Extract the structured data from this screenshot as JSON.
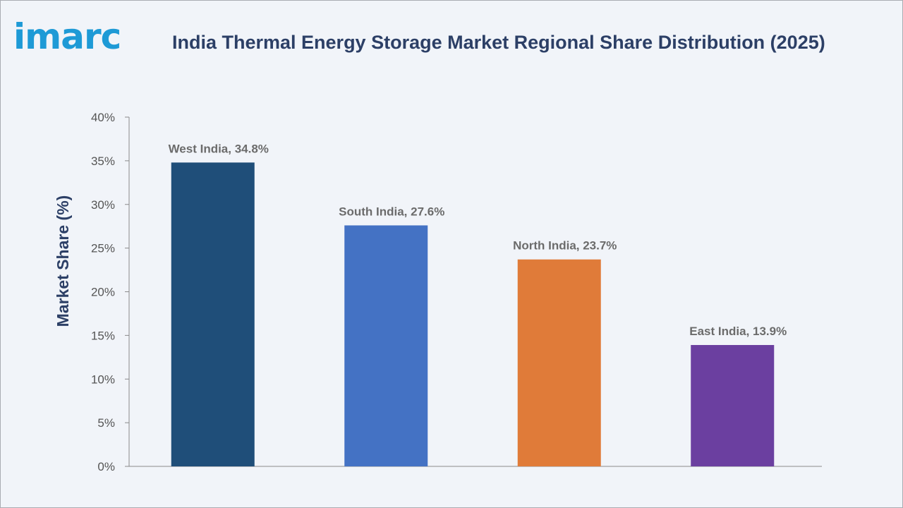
{
  "header": {
    "logo": "imarc",
    "title": "India Thermal Energy Storage Market Regional Share Distribution (2025)"
  },
  "chart_data": {
    "type": "bar",
    "title": "India Thermal Energy Storage Market Regional Share Distribution (2025)",
    "xlabel": "",
    "ylabel": "Market Share (%)",
    "categories": [
      "West India",
      "South India",
      "North India",
      "East India"
    ],
    "values": [
      34.8,
      27.6,
      23.7,
      13.9
    ],
    "data_labels": [
      "West India, 34.8%",
      "South India, 27.6%",
      "North India, 23.7%",
      "East India, 13.9%"
    ],
    "colors": [
      "#1f4e79",
      "#4472c4",
      "#e07b39",
      "#6b3fa0"
    ],
    "ylim": [
      0,
      40
    ],
    "yticks": [
      "0%",
      "5%",
      "10%",
      "15%",
      "20%",
      "25%",
      "30%",
      "35%",
      "40%"
    ],
    "grid": false,
    "legend": "none"
  }
}
